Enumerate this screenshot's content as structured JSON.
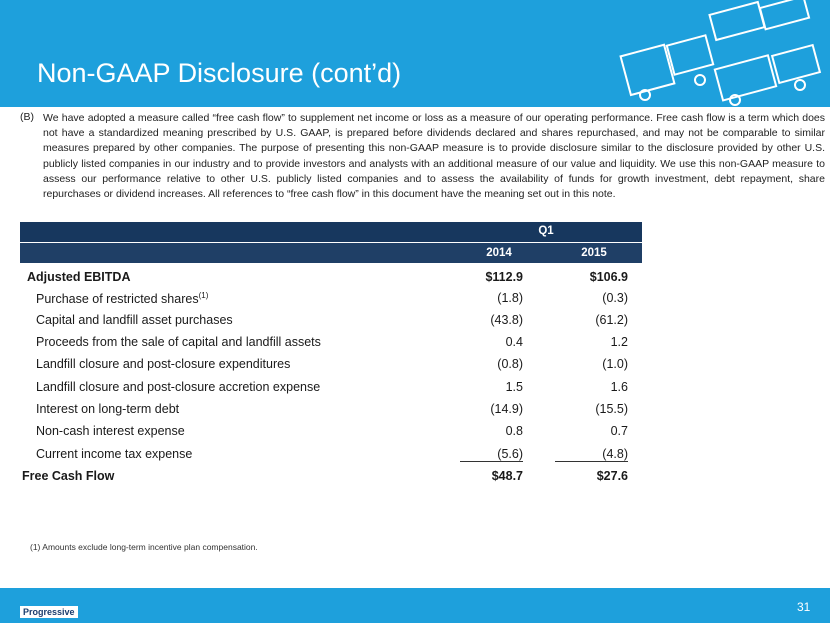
{
  "header": {
    "title": "Non-GAAP Disclosure (cont’d)"
  },
  "note": {
    "label": "(B)",
    "text": "We have adopted a measure called “free cash flow” to supplement net income or loss as a measure of our operating performance.  Free cash flow is a term which does not have a standardized meaning prescribed by U.S. GAAP, is prepared before dividends declared and shares repurchased, and may not be comparable to similar measures prepared by other companies.  The purpose of presenting this non-GAAP measure is to provide disclosure similar to the disclosure provided by other U.S. publicly listed companies in our industry and to provide investors and analysts with an additional measure of our value and liquidity.  We use this non-GAAP measure to assess our performance relative to other U.S. publicly listed companies and to assess the availability of funds for growth investment, debt repayment, share repurchases or dividend increases.  All references to “free cash flow” in this document have the meaning set out in this note."
  },
  "table": {
    "period": "Q1",
    "columns": [
      "2014",
      "2015"
    ],
    "rows": [
      {
        "label": "Adjusted EBITDA",
        "values": [
          "$112.9",
          "$106.9"
        ]
      },
      {
        "label": "Purchase of restricted shares",
        "sup": "(1)",
        "values": [
          "(1.8)",
          "(0.3)"
        ]
      },
      {
        "label": "Capital and landfill asset purchases",
        "values": [
          "(43.8)",
          "(61.2)"
        ]
      },
      {
        "label": "Proceeds from the sale of capital and landfill assets",
        "values": [
          "0.4",
          "1.2"
        ]
      },
      {
        "label": "Landfill closure and post-closure expenditures",
        "values": [
          "(0.8)",
          "(1.0)"
        ]
      },
      {
        "label": "Landfill closure and post-closure accretion expense",
        "values": [
          "1.5",
          "1.6"
        ]
      },
      {
        "label": "Interest on long-term debt",
        "values": [
          "(14.9)",
          "(15.5)"
        ]
      },
      {
        "label": "Non-cash interest expense",
        "values": [
          "0.8",
          "0.7"
        ]
      },
      {
        "label": "Current income tax expense",
        "values": [
          "(5.6)",
          "(4.8)"
        ]
      },
      {
        "label": "Free Cash Flow",
        "values": [
          "$48.7",
          "$27.6"
        ]
      }
    ]
  },
  "footnote": "(1) Amounts exclude long-term incentive plan compensation.",
  "footer": {
    "logo": "Progressive",
    "page": "31"
  }
}
